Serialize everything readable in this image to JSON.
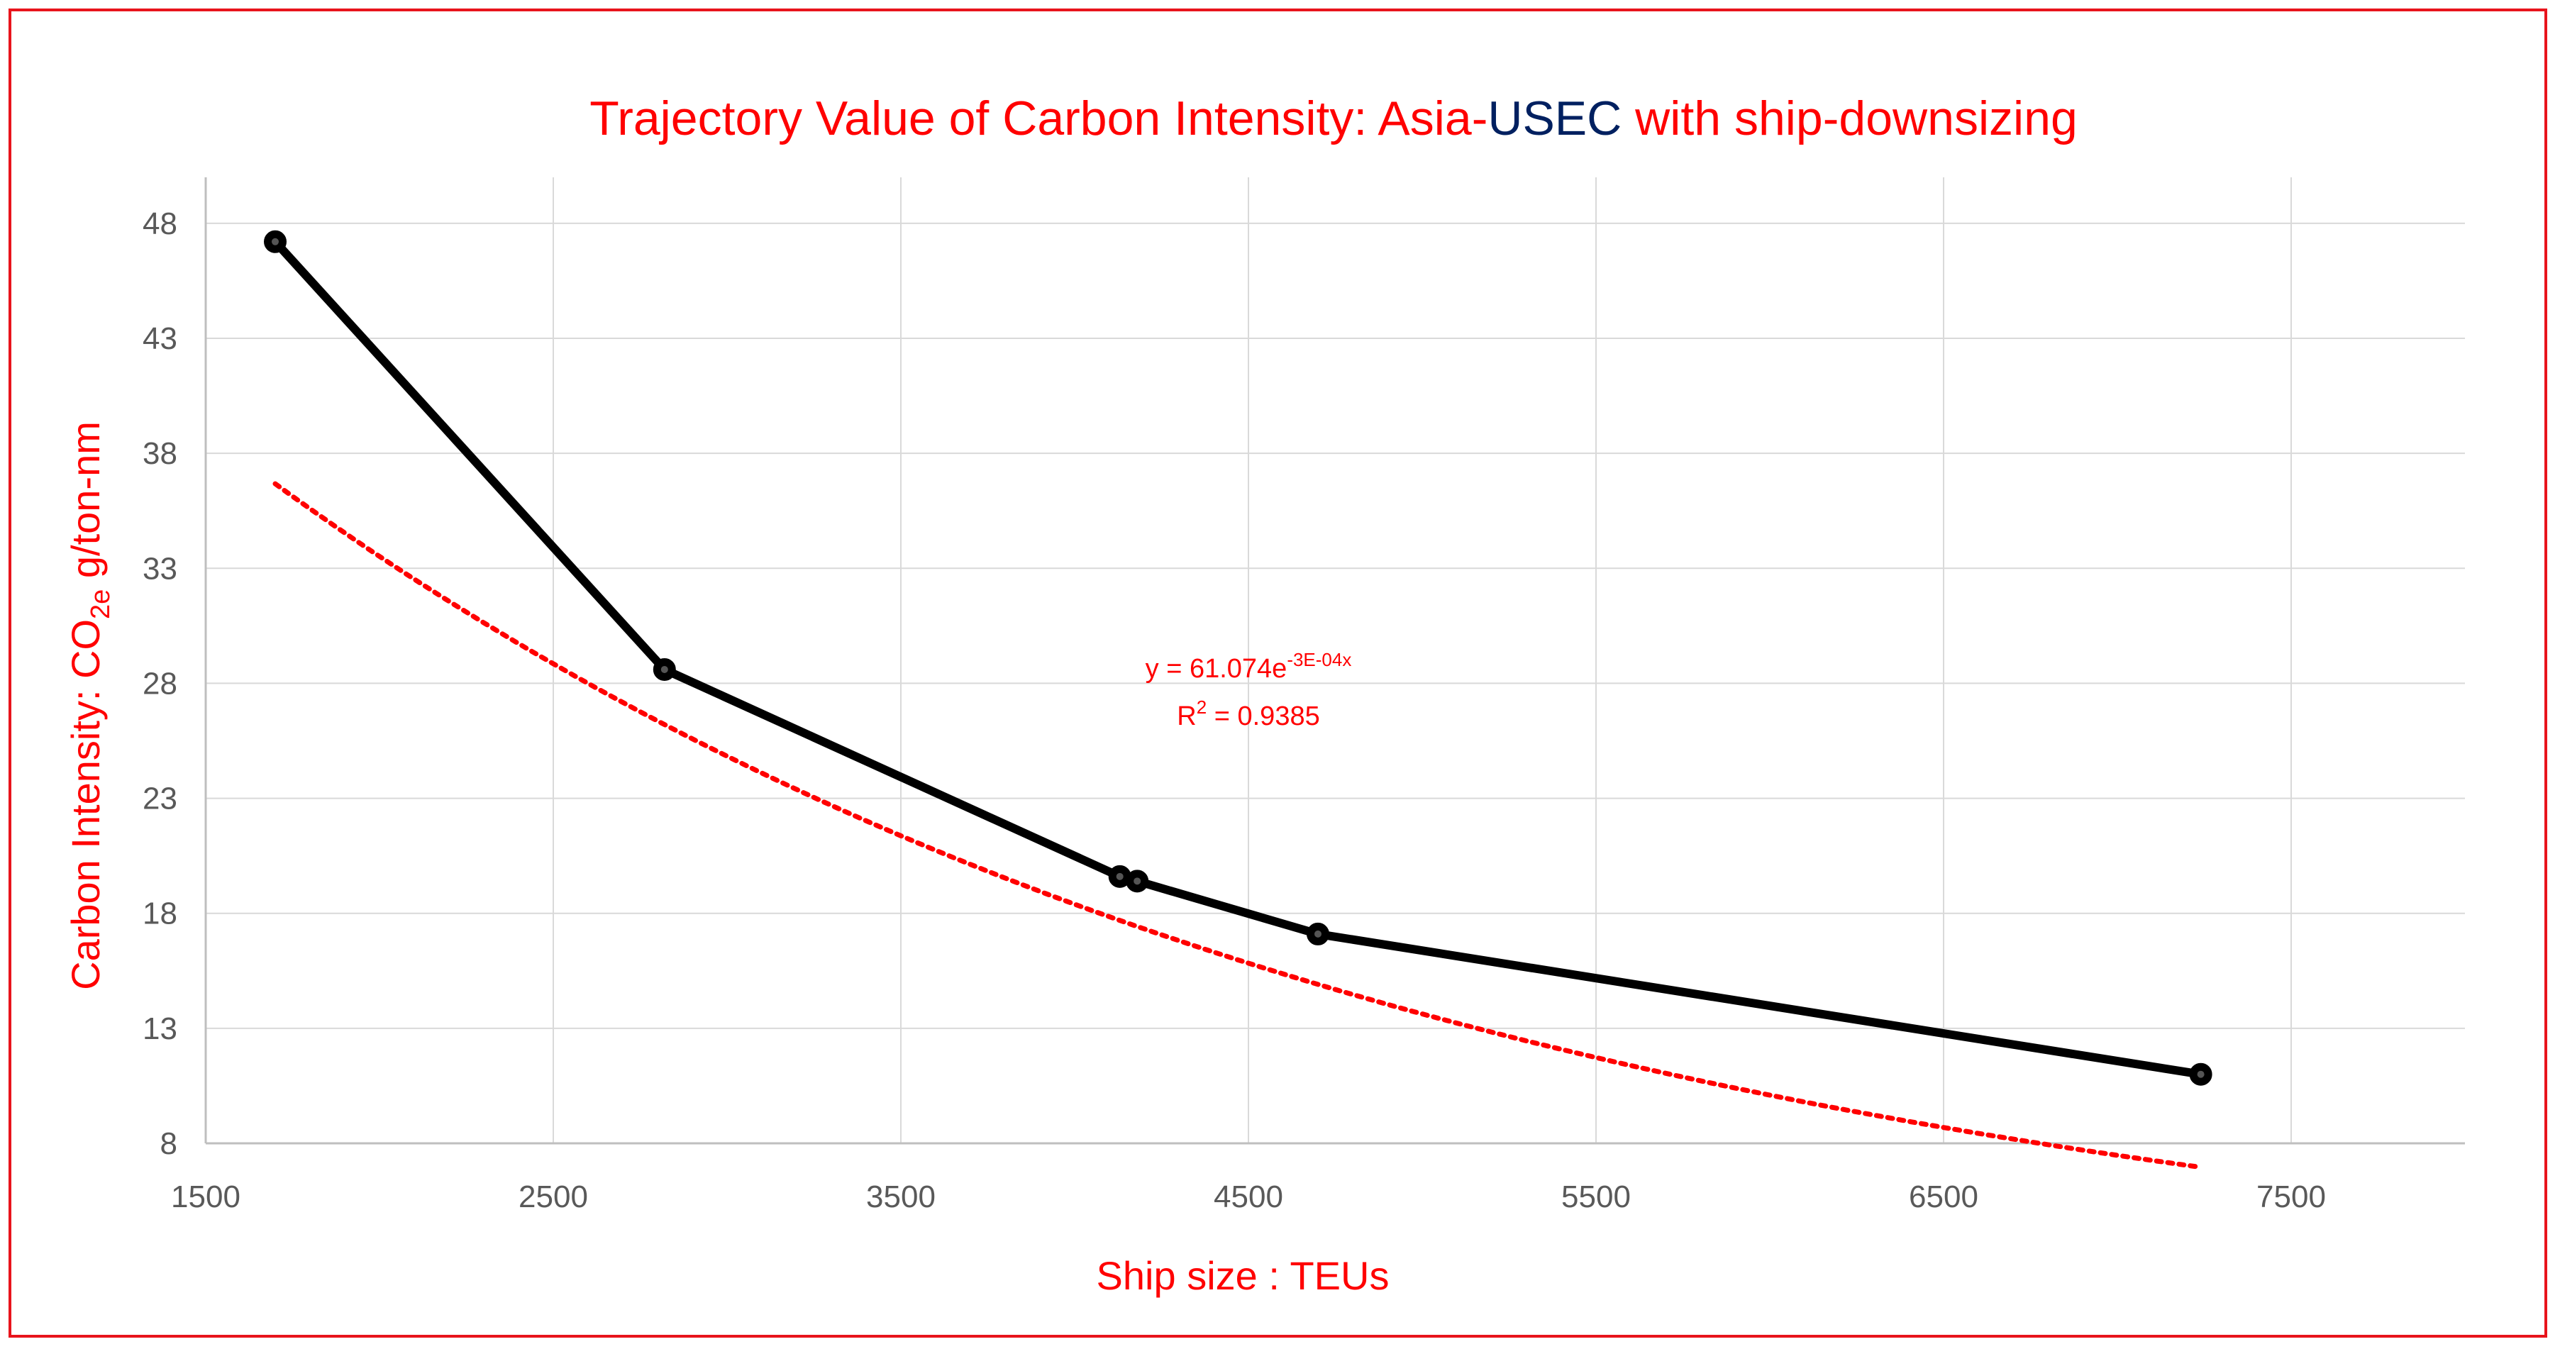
{
  "chart_data": {
    "type": "line",
    "title_parts": [
      {
        "text": "Trajectory Value of Carbon Intensity: Asia-",
        "color": "#ff0000"
      },
      {
        "text": "USEC",
        "color": "#002060"
      },
      {
        "text": " with ship-downsizing",
        "color": "#ff0000"
      }
    ],
    "xlabel": "Ship size : TEUs",
    "ylabel_parts": [
      {
        "text": "Carbon Intensity: CO",
        "sub": false
      },
      {
        "text": "2e",
        "sub": true
      },
      {
        "text": " g/ton-nm",
        "sub": false
      }
    ],
    "xlim": [
      1500,
      8000
    ],
    "ylim": [
      8,
      50
    ],
    "x_ticks": [
      1500,
      2500,
      3500,
      4500,
      5500,
      6500,
      7500
    ],
    "y_ticks": [
      8,
      13,
      18,
      23,
      28,
      33,
      38,
      43,
      48
    ],
    "grid": true,
    "series": [
      {
        "name": "Carbon Intensity",
        "color": "#000000",
        "marker": "circle",
        "x": [
          1700,
          2820,
          4130,
          4180,
          4700,
          7240
        ],
        "y": [
          47.2,
          28.6,
          19.6,
          19.4,
          17.1,
          11.0
        ]
      }
    ],
    "trendline": {
      "type": "exponential",
      "a": 61.074,
      "b": -0.0003,
      "x_range": [
        1700,
        7240
      ],
      "color": "#ff0000",
      "style": "dotted",
      "equation_label": {
        "base": "y = 61.074e",
        "exponent": "-3E-04x"
      },
      "r2_label": {
        "base": "R",
        "exponent": "2",
        "value": " = 0.9385"
      }
    },
    "colors": {
      "accent": "#ff0000",
      "grid": "#d9d9d9",
      "axis": "#bfbfbf",
      "frame": "#e8141c"
    }
  }
}
